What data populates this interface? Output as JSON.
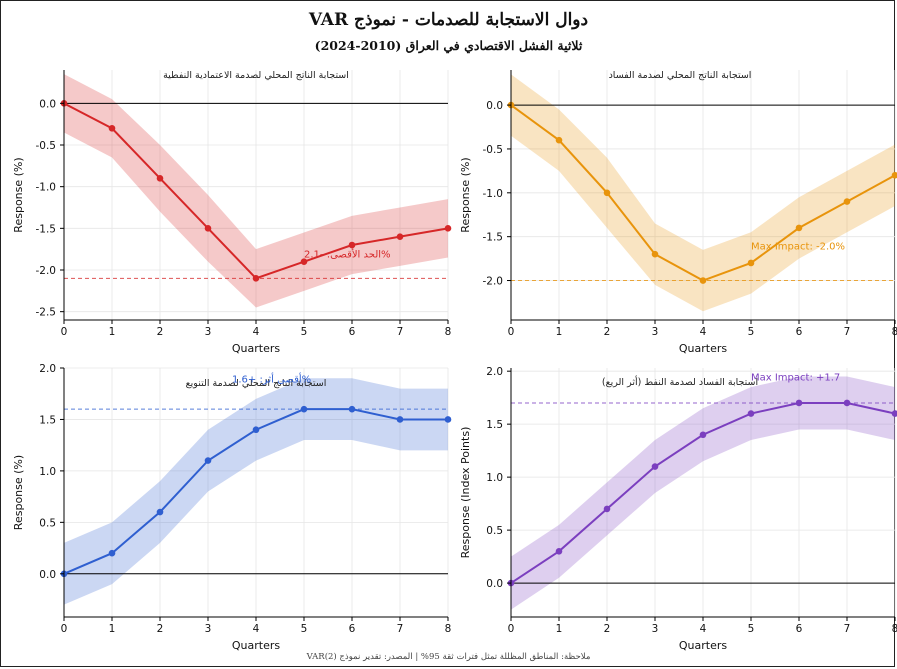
{
  "figure": {
    "title": "دوال الاستجابة للصدمات - نموذج VAR",
    "subtitle": "ثلاثية الفشل الاقتصادي في العراق (2010-2024)",
    "footer_note": "ملاحظة: المناطق المظللة تمثل فترات ثقة 95% | المصدر: تقدير نموذج VAR(2)"
  },
  "colors": {
    "red": "#d62728",
    "orange": "#e8940c",
    "blue": "#2f5fd0",
    "purple": "#7b3fbf",
    "zero_line": "#000000",
    "grid": "#e6e6e6"
  },
  "chart_data": [
    {
      "type": "line",
      "title": "استجابة الناتج المحلي لصدمة الاعتمادية النفطية",
      "xlabel": "Quarters",
      "ylabel": "Response (%)",
      "color_key": "red",
      "x": [
        0,
        1,
        2,
        3,
        4,
        5,
        6,
        7,
        8
      ],
      "y": [
        0,
        -0.3,
        -0.9,
        -1.5,
        -2.1,
        -1.9,
        -1.7,
        -1.6,
        -1.5
      ],
      "lower": [
        -0.35,
        -0.65,
        -1.3,
        -1.9,
        -2.45,
        -2.25,
        -2.05,
        -1.95,
        -1.85
      ],
      "upper": [
        0.35,
        0.05,
        -0.5,
        -1.1,
        -1.75,
        -1.55,
        -1.35,
        -1.25,
        -1.15
      ],
      "xlim": [
        0,
        8
      ],
      "ylim": [
        -2.6,
        0.4
      ],
      "yticks": [
        0.0,
        -0.5,
        -1.0,
        -1.5,
        -2.0,
        -2.5
      ],
      "xticks": [
        0,
        1,
        2,
        3,
        4,
        5,
        6,
        7,
        8
      ],
      "ref_line": -2.1,
      "annotation": {
        "text": "الحد الأقصى: -2.1%",
        "x": 5,
        "y": -1.8
      },
      "grid": true
    },
    {
      "type": "line",
      "title": "استجابة الناتج المحلي لصدمة الفساد",
      "xlabel": "Quarters",
      "ylabel": "Response (%)",
      "color_key": "orange",
      "x": [
        0,
        1,
        2,
        3,
        4,
        5,
        6,
        7,
        8
      ],
      "y": [
        0,
        -0.4,
        -1.0,
        -1.7,
        -2.0,
        -1.8,
        -1.4,
        -1.1,
        -0.8
      ],
      "lower": [
        -0.35,
        -0.75,
        -1.4,
        -2.05,
        -2.35,
        -2.15,
        -1.75,
        -1.45,
        -1.15
      ],
      "upper": [
        0.35,
        -0.05,
        -0.6,
        -1.35,
        -1.65,
        -1.45,
        -1.05,
        -0.75,
        -0.45
      ],
      "xlim": [
        0,
        8
      ],
      "ylim": [
        -2.45,
        0.4
      ],
      "yticks": [
        0.0,
        -0.5,
        -1.0,
        -1.5,
        -2.0
      ],
      "xticks": [
        0,
        1,
        2,
        3,
        4,
        5,
        6,
        7,
        8
      ],
      "ref_line": -2.0,
      "annotation": {
        "text": "Max Impact: -2.0%",
        "x": 5,
        "y": -1.6
      },
      "grid": true
    },
    {
      "type": "line",
      "title": "استجابة الناتج المحلي لصدمة التنويع",
      "xlabel": "Quarters",
      "ylabel": "Response (%)",
      "color_key": "blue",
      "x": [
        0,
        1,
        2,
        3,
        4,
        5,
        6,
        7,
        8
      ],
      "y": [
        0,
        0.2,
        0.6,
        1.1,
        1.4,
        1.6,
        1.6,
        1.5,
        1.5
      ],
      "lower": [
        -0.3,
        -0.1,
        0.3,
        0.8,
        1.1,
        1.3,
        1.3,
        1.2,
        1.2
      ],
      "upper": [
        0.3,
        0.5,
        0.9,
        1.4,
        1.7,
        1.9,
        1.9,
        1.8,
        1.8
      ],
      "xlim": [
        0,
        8
      ],
      "ylim": [
        -0.42,
        2.0
      ],
      "yticks": [
        0.0,
        0.5,
        1.0,
        1.5,
        2.0
      ],
      "xticks": [
        0,
        1,
        2,
        3,
        4,
        5,
        6,
        7,
        8
      ],
      "ref_line": 1.6,
      "annotation": {
        "text": "أقصى أثر: +1.6%",
        "x": 3.5,
        "y": 1.9
      },
      "grid": true
    },
    {
      "type": "line",
      "title": "استجابة الفساد لصدمة النفط (أثر الريع)",
      "xlabel": "Quarters",
      "ylabel": "Response (Index Points)",
      "color_key": "purple",
      "x": [
        0,
        1,
        2,
        3,
        4,
        5,
        6,
        7,
        8
      ],
      "y": [
        0,
        0.3,
        0.7,
        1.1,
        1.4,
        1.6,
        1.7,
        1.7,
        1.6
      ],
      "lower": [
        -0.25,
        0.05,
        0.45,
        0.85,
        1.15,
        1.35,
        1.45,
        1.45,
        1.35
      ],
      "upper": [
        0.25,
        0.55,
        0.95,
        1.35,
        1.65,
        1.85,
        1.95,
        1.95,
        1.85
      ],
      "xlim": [
        0,
        8
      ],
      "ylim": [
        -0.32,
        2.03
      ],
      "yticks": [
        0.0,
        0.5,
        1.0,
        1.5,
        2.0
      ],
      "xticks": [
        0,
        1,
        2,
        3,
        4,
        5,
        6,
        7,
        8
      ],
      "ref_line": 1.7,
      "annotation": {
        "text": "Max Impact: +1.7",
        "x": 5,
        "y": 1.95
      },
      "grid": true
    }
  ]
}
